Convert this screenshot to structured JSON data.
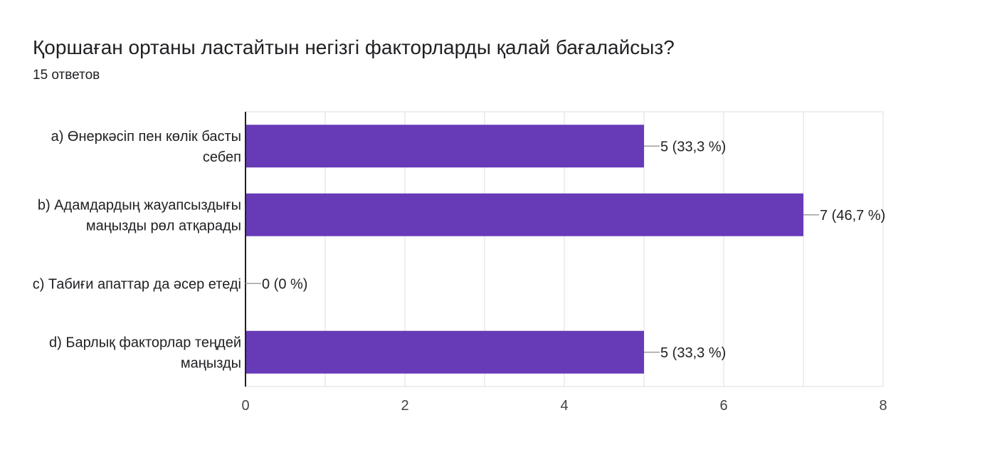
{
  "question": {
    "title": "Қоршаған ортаны ластайтын негізгі факторларды қалай бағалайсыз?",
    "responses": "15 ответов"
  },
  "colors": {
    "bar": "#673ab7",
    "grid": "#e8e8e8",
    "axis": "#202124",
    "leader": "#9e9e9e",
    "text": "#202124"
  },
  "chart_data": {
    "type": "bar",
    "orientation": "horizontal",
    "categories": [
      [
        "a) Өнеркәсіп пен көлік басты",
        "себеп"
      ],
      [
        "b) Адамдардың жауапсыздығы",
        "маңызды рөл атқарады"
      ],
      [
        "c) Табиғи апаттар да әсер етеді"
      ],
      [
        "d) Барлық факторлар теңдей",
        "маңызды"
      ]
    ],
    "values": [
      5,
      7,
      0,
      5
    ],
    "value_labels": [
      "5 (33,3 %)",
      "7 (46,7 %)",
      "0 (0 %)",
      "5 (33,3 %)"
    ],
    "xlim": [
      0,
      8
    ],
    "xticks": [
      0,
      2,
      4,
      6,
      8
    ],
    "xtick_labels": [
      "0",
      "2",
      "4",
      "6",
      "8"
    ],
    "grid": true
  }
}
